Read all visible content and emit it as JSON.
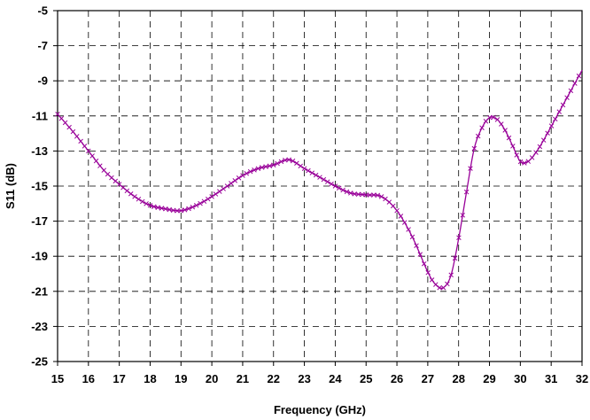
{
  "chart_data": {
    "type": "line",
    "title": "",
    "xlabel": "Frequency (GHz)",
    "ylabel": "S11 (dB)",
    "xlim": [
      15,
      32
    ],
    "ylim": [
      -25,
      -5
    ],
    "xticks": [
      15,
      16,
      17,
      18,
      19,
      20,
      21,
      22,
      23,
      24,
      25,
      26,
      27,
      28,
      29,
      30,
      31,
      32
    ],
    "yticks": [
      -5,
      -7,
      -9,
      -11,
      -13,
      -15,
      -17,
      -19,
      -21,
      -23,
      -25
    ],
    "grid": true,
    "legend": "none",
    "colors": {
      "series": "#990099",
      "grid": "#000000",
      "frame": "#000000"
    },
    "marker": "x",
    "series": [
      {
        "name": "",
        "x": [
          15.0,
          15.5,
          16.0,
          16.5,
          17.0,
          17.5,
          18.0,
          18.5,
          19.0,
          19.5,
          20.0,
          20.5,
          21.0,
          21.5,
          22.0,
          22.5,
          23.0,
          23.5,
          24.0,
          24.5,
          25.0,
          25.5,
          26.0,
          26.5,
          27.0,
          27.25,
          27.5,
          27.75,
          28.0,
          28.25,
          28.5,
          28.75,
          29.0,
          29.25,
          29.5,
          29.75,
          30.0,
          30.25,
          30.5,
          30.75,
          31.0,
          31.5,
          32.0
        ],
        "values": [
          -10.9,
          -11.9,
          -13.0,
          -14.1,
          -14.9,
          -15.6,
          -16.1,
          -16.3,
          -16.4,
          -16.1,
          -15.6,
          -15.0,
          -14.4,
          -14.0,
          -13.8,
          -13.5,
          -14.0,
          -14.5,
          -15.0,
          -15.4,
          -15.5,
          -15.6,
          -16.4,
          -17.9,
          -19.9,
          -20.6,
          -20.8,
          -20.1,
          -18.0,
          -15.4,
          -12.9,
          -11.7,
          -11.1,
          -11.2,
          -11.8,
          -12.7,
          -13.6,
          -13.6,
          -13.1,
          -12.4,
          -11.6,
          -10.0,
          -8.4
        ]
      }
    ]
  }
}
